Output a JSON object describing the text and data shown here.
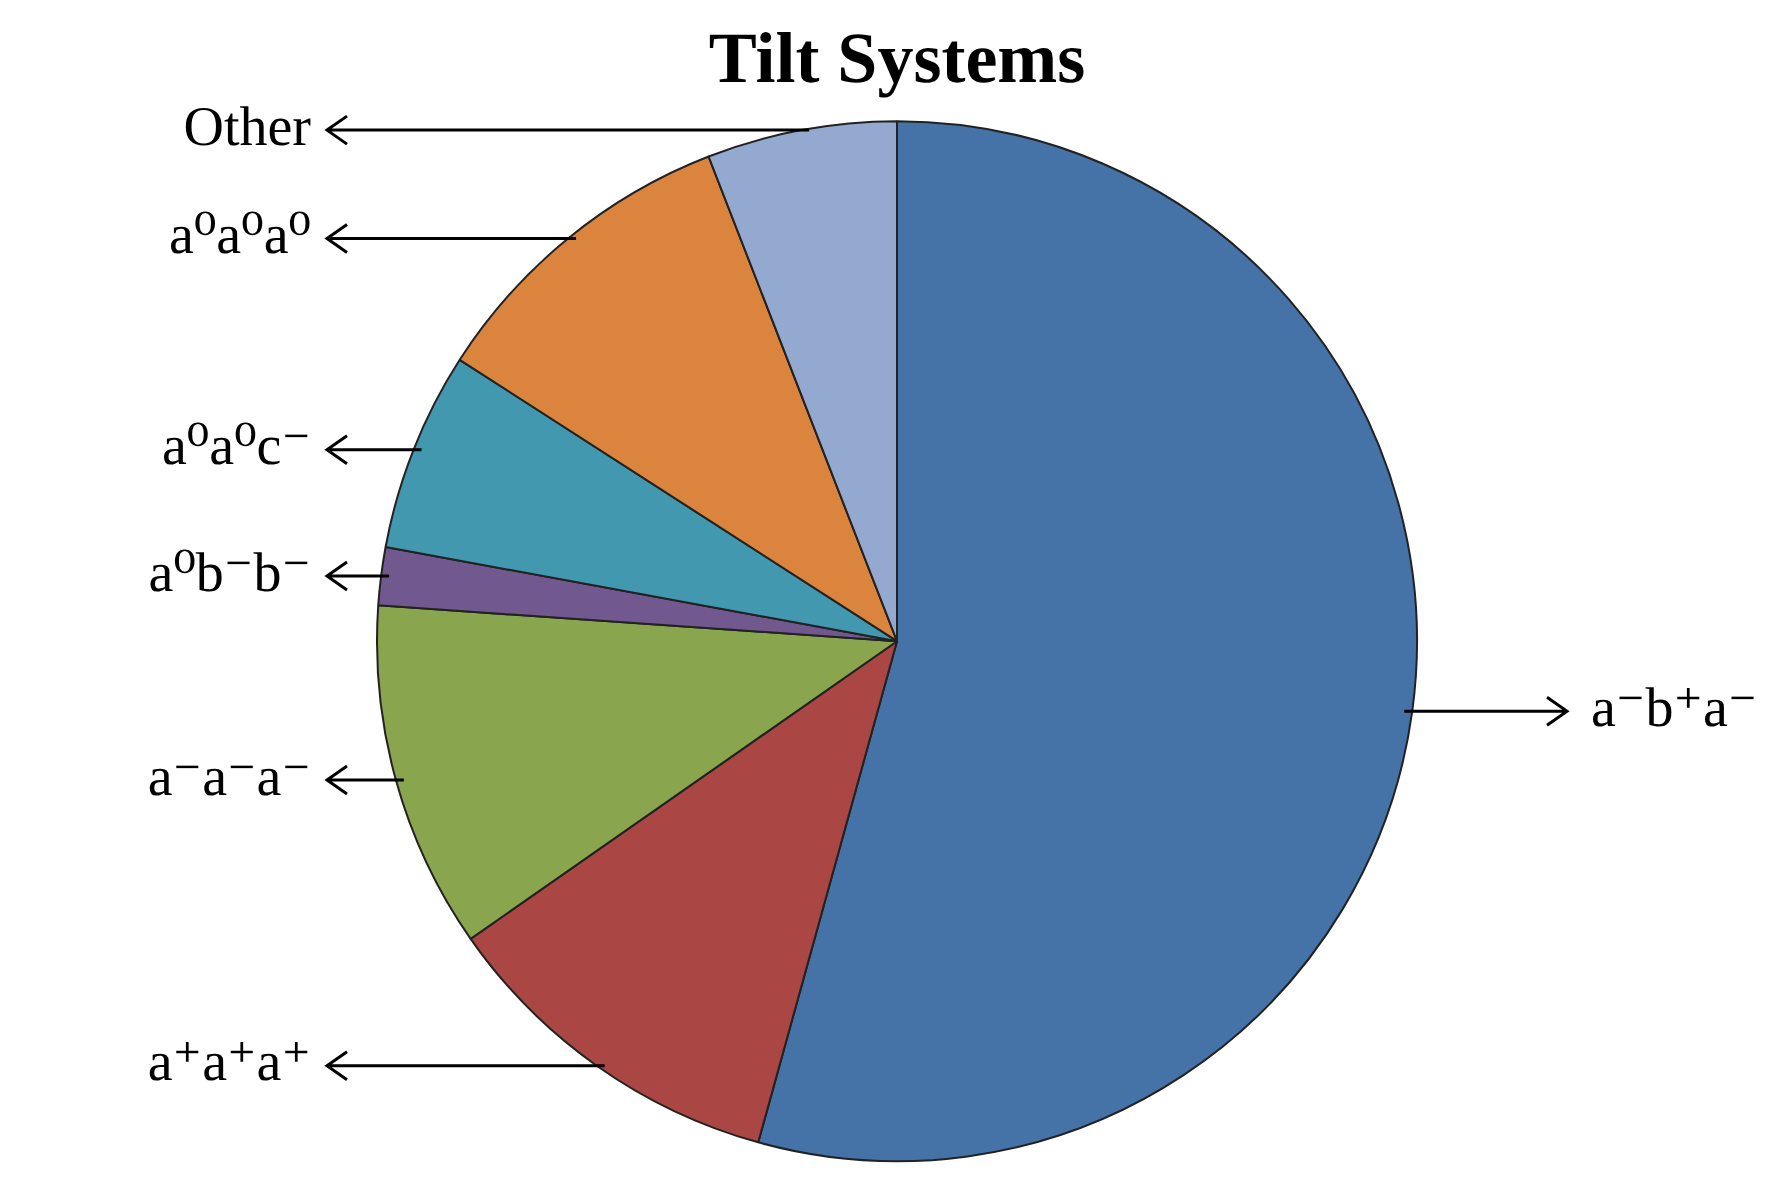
{
  "chart_data": {
    "type": "pie",
    "title": "Tilt Systems",
    "categories": [
      "a⁻b⁺a⁻",
      "a⁺a⁺a⁺",
      "a⁻a⁻a⁻",
      "a⁰b⁻b⁻",
      "a⁰a⁰c⁻",
      "a⁰a⁰a⁰",
      "Other"
    ],
    "values": [
      54.3,
      11.0,
      10.8,
      1.8,
      6.2,
      10.0,
      5.9
    ],
    "colors": [
      "#4572a7",
      "#aa4643",
      "#89a54e",
      "#71588f",
      "#4198af",
      "#db843d",
      "#93a9cf"
    ],
    "legend": false
  }
}
